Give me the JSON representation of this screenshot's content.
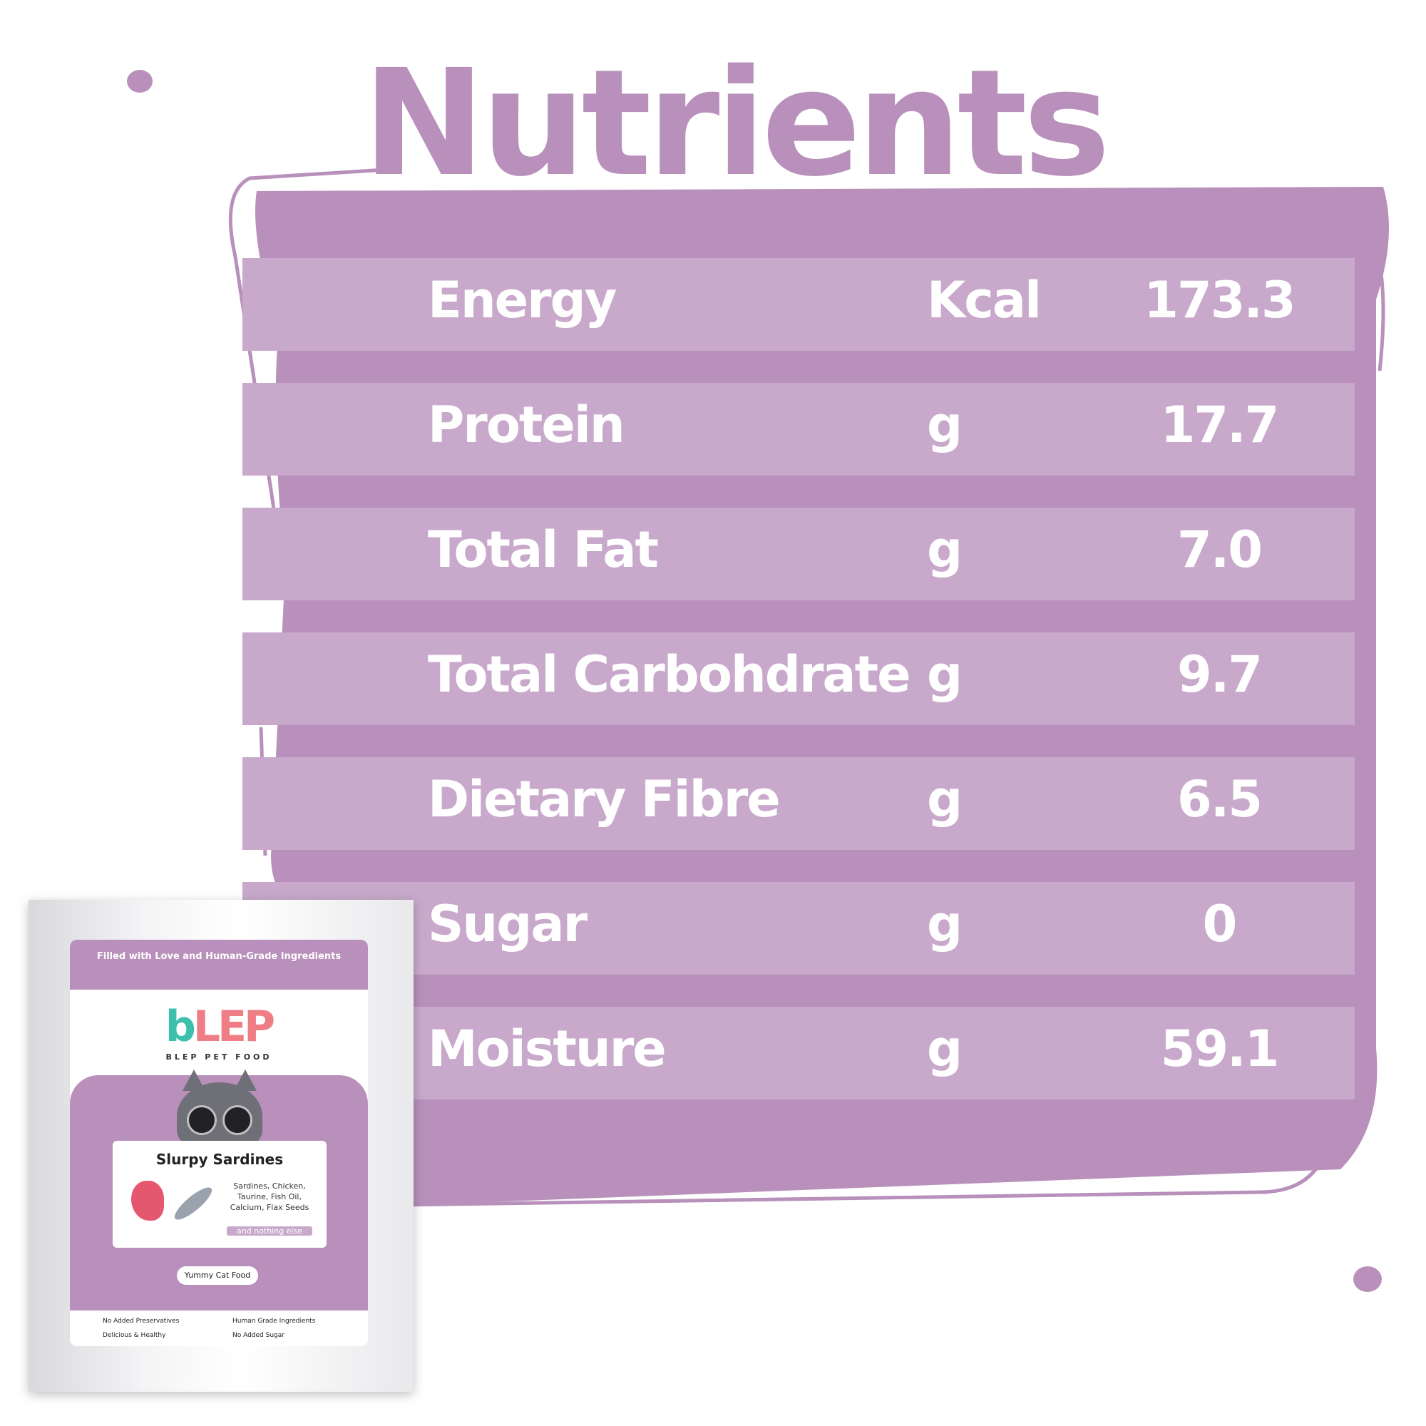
{
  "title": "Nutrients",
  "colors": {
    "accent": "#b890bb",
    "row": "#c8a9cb",
    "text": "#ffffff"
  },
  "nutrients": [
    {
      "name": "Energy",
      "unit": "Kcal",
      "value": "173.3"
    },
    {
      "name": "Protein",
      "unit": "g",
      "value": "17.7"
    },
    {
      "name": "Total Fat",
      "unit": "g",
      "value": "7.0"
    },
    {
      "name": "Total Carbohdrate",
      "unit": "g",
      "value": "9.7"
    },
    {
      "name": "Dietary Fibre",
      "unit": "g",
      "value": "6.5"
    },
    {
      "name": "Sugar",
      "unit": "g",
      "value": "0"
    },
    {
      "name": "Moisture",
      "unit": "g",
      "value": "59.1"
    }
  ],
  "pouch": {
    "tagline": "Filled with Love and Human-Grade Ingredients",
    "brand_b": "b",
    "brand_lep": "LEP",
    "brand_sub": "BLEP PET FOOD",
    "product": "Slurpy Sardines",
    "ingredients": "Sardines, Chicken, Taurine, Fish Oil, Calcium, Flax Seeds",
    "nothing_else": "and nothing else",
    "badge": "Yummy Cat Food",
    "features": [
      "No Added Preservatives",
      "Human Grade Ingredients",
      "Delicious & Healthy",
      "No Added Sugar"
    ]
  }
}
